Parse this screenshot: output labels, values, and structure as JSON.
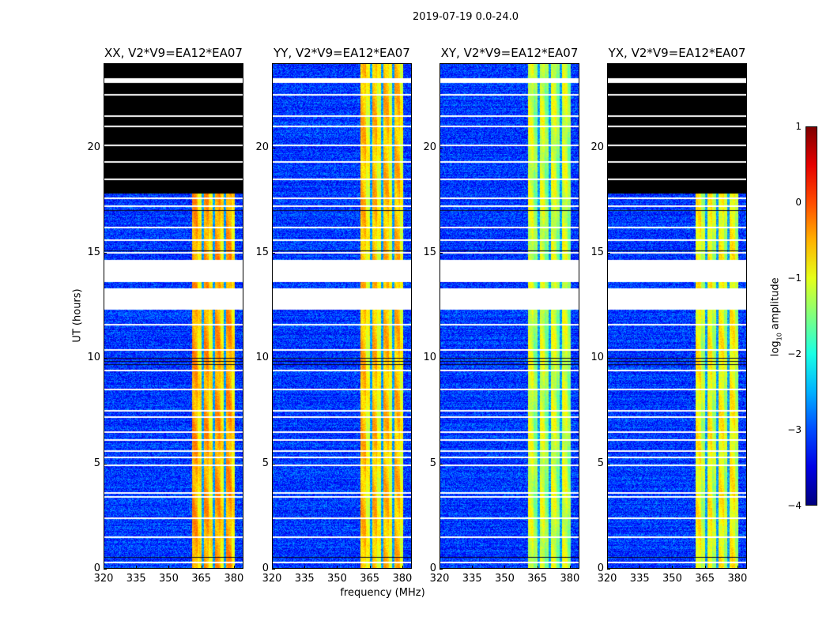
{
  "chart_data": {
    "type": "heatmap",
    "title": "2019-07-19 0.0-24.0",
    "xlabel": "frequency (MHz)",
    "ylabel": "UT (hours)",
    "xlim": [
      320,
      384.4
    ],
    "ylim": [
      0,
      24
    ],
    "xticks": [
      320,
      335,
      350,
      365,
      380
    ],
    "yticks": [
      0,
      5,
      10,
      15,
      20
    ],
    "colorbar": {
      "label_prefix": "log",
      "label_sub": "10",
      "label_suffix": " amplitude",
      "range": [
        -4,
        1
      ],
      "ticks": [
        "1",
        "0",
        "−1",
        "−2",
        "−3",
        "−4"
      ],
      "colormap": "jet"
    },
    "background_log_amplitude": -3.1,
    "bright_band_mhz": [
      360.7,
      380.4
    ],
    "band_gaps_mhz": [
      365.6,
      370.8,
      375.9
    ],
    "flagged_hour_ranges": [
      [
        12.3,
        13.3
      ],
      [
        13.6,
        14.65
      ],
      [
        23.07,
        23.29
      ]
    ],
    "flagged_line_hours": [
      0.3,
      1.5,
      2.4,
      3.4,
      3.6,
      4.9,
      5.3,
      5.6,
      6.1,
      6.5,
      7.2,
      7.5,
      8.5,
      9.4,
      10.4,
      11.6,
      15.0,
      15.6,
      16.2,
      17.2,
      17.6,
      18.5,
      19.3,
      20.1,
      21.0,
      21.5,
      22.5
    ],
    "dark_line_hours": [
      0.55,
      9.7,
      9.85,
      10.0,
      15.1,
      17.0
    ],
    "panels": [
      {
        "title": "XX, V2*V9=EA12*EA07",
        "band_log_amplitude": -0.55,
        "no_data_hours": [
          17.8,
          24
        ]
      },
      {
        "title": "YY, V2*V9=EA12*EA07",
        "band_log_amplitude": -0.7,
        "no_data_hours": null
      },
      {
        "title": "XY, V2*V9=EA12*EA07",
        "band_log_amplitude": -1.2,
        "no_data_hours": null
      },
      {
        "title": "YX, V2*V9=EA12*EA07",
        "band_log_amplitude": -1.0,
        "no_data_hours": [
          17.8,
          24
        ]
      }
    ]
  }
}
